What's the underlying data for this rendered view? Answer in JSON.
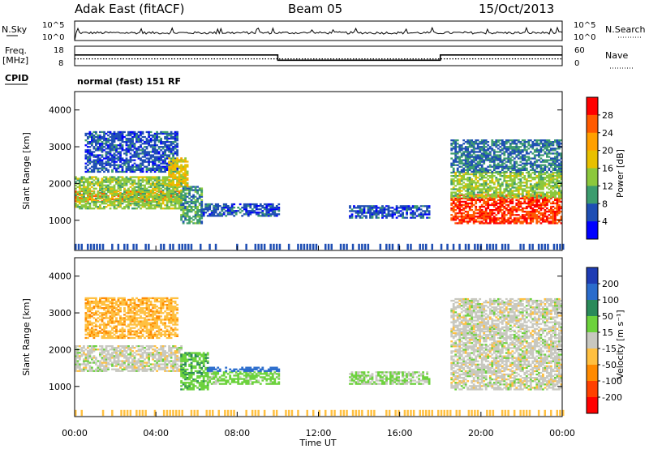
{
  "header": {
    "station": "Adak East (fitACF)",
    "beam": "Beam 05",
    "date": "15/Oct/2013"
  },
  "noise_panel": {
    "left_label": "N.Sky",
    "right_label": "N.Search",
    "left_ticks": [
      "10^5",
      "10^0"
    ],
    "right_ticks": [
      "10^5",
      "10^0"
    ]
  },
  "freq_panel": {
    "left_label_1": "Freq.",
    "left_label_2": "[MHz]",
    "right_label": "Nave",
    "left_ticks": [
      "18",
      "8"
    ],
    "right_ticks": [
      "60",
      "0"
    ]
  },
  "cpid_panel": {
    "left_label": "CPID",
    "text": "normal (fast) 151 RF"
  },
  "power_panel": {
    "ylabel": "Slant Range [km]",
    "colorbar_label": "Power [dB]",
    "colorbar_ticks": [
      "28",
      "24",
      "20",
      "16",
      "12",
      "8",
      "4"
    ],
    "colorbar_colors": [
      "#ff0000",
      "#ff5a00",
      "#ffa000",
      "#e8c000",
      "#8cc83c",
      "#3c9c6e",
      "#1e4eb4",
      "#0000ff"
    ]
  },
  "velocity_panel": {
    "ylabel": "Slant Range [km]",
    "colorbar_label": "Velocity [m s⁻¹]",
    "colorbar_ticks": [
      "200",
      "100",
      "50",
      "15",
      "-15",
      "-50",
      "-100",
      "-200"
    ],
    "colorbar_colors": [
      "#1e3cb4",
      "#2a6ccc",
      "#2a8a5a",
      "#6cd23c",
      "#c8c8c0",
      "#ffc040",
      "#ff8a00",
      "#ff4000",
      "#ff0000"
    ]
  },
  "x_axis": {
    "label": "Time UT",
    "ticks": [
      "00:00",
      "04:00",
      "08:00",
      "12:00",
      "16:00",
      "20:00",
      "00:00"
    ]
  },
  "chart_data": {
    "type": "heatmap",
    "x_range_hours": [
      0,
      24
    ],
    "y_range_km": [
      180,
      4500
    ],
    "y_ticks_km": [
      1000,
      2000,
      3000,
      4000
    ],
    "x_tick_hours": [
      0,
      4,
      8,
      12,
      16,
      20,
      24
    ],
    "frequency_mhz": [
      {
        "from": 0,
        "to": 10,
        "value": 13.5
      },
      {
        "from": 10,
        "to": 18,
        "value": 10.8
      },
      {
        "from": 18,
        "to": 24,
        "value": 13.5
      }
    ],
    "nave": 21,
    "power_regions": [
      {
        "t0": 0.0,
        "t1": 5.2,
        "r0": 1500,
        "r1": 1800,
        "db": 24
      },
      {
        "t0": 0.0,
        "t1": 5.2,
        "r0": 1300,
        "r1": 2200,
        "db": 14
      },
      {
        "t0": 0.5,
        "t1": 5.0,
        "r0": 2300,
        "r1": 3400,
        "db": 6
      },
      {
        "t0": 4.6,
        "t1": 5.5,
        "r0": 1900,
        "r1": 2700,
        "db": 18
      },
      {
        "t0": 5.2,
        "t1": 6.2,
        "r0": 900,
        "r1": 1900,
        "db": 10
      },
      {
        "t0": 6.2,
        "t1": 10.0,
        "r0": 1100,
        "r1": 1450,
        "db": 6
      },
      {
        "t0": 13.5,
        "t1": 17.5,
        "r0": 1050,
        "r1": 1400,
        "db": 6
      },
      {
        "t0": 18.5,
        "t1": 24.0,
        "r0": 900,
        "r1": 1700,
        "db": 28
      },
      {
        "t0": 18.5,
        "t1": 24.0,
        "r0": 1600,
        "r1": 2300,
        "db": 14
      },
      {
        "t0": 18.5,
        "t1": 24.0,
        "r0": 2300,
        "r1": 3200,
        "db": 8
      }
    ],
    "velocity_regions": [
      {
        "t0": 0.0,
        "t1": 5.2,
        "r0": 1400,
        "r1": 2100,
        "v": 0
      },
      {
        "t0": 0.5,
        "t1": 5.0,
        "r0": 2300,
        "r1": 3400,
        "v": -40
      },
      {
        "t0": 5.2,
        "t1": 6.5,
        "r0": 900,
        "r1": 1900,
        "v": 40
      },
      {
        "t0": 6.5,
        "t1": 10.0,
        "r0": 1050,
        "r1": 1400,
        "v": 30
      },
      {
        "t0": 6.5,
        "t1": 10.0,
        "r0": 1400,
        "r1": 1500,
        "v": 120
      },
      {
        "t0": 13.5,
        "t1": 17.5,
        "r0": 1050,
        "r1": 1400,
        "v": 20
      },
      {
        "t0": 18.5,
        "t1": 24.0,
        "r0": 900,
        "r1": 2500,
        "v": 0
      },
      {
        "t0": 18.5,
        "t1": 24.0,
        "r0": 2500,
        "r1": 3400,
        "v": 0
      }
    ]
  }
}
